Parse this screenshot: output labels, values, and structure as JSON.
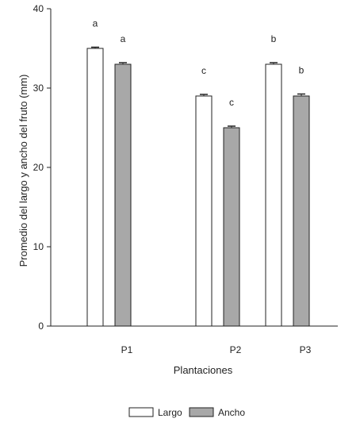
{
  "chart_data": {
    "type": "bar",
    "categories": [
      "P1",
      "P2",
      "P3"
    ],
    "series": [
      {
        "name": "Largo",
        "values": [
          35,
          29,
          33
        ],
        "errors": [
          0.15,
          0.2,
          0.2
        ],
        "labels": [
          "a",
          "c",
          "b"
        ],
        "color": "#ffffff"
      },
      {
        "name": "Ancho",
        "values": [
          33,
          25,
          29
        ],
        "errors": [
          0.2,
          0.2,
          0.25
        ],
        "labels": [
          "a",
          "c",
          "b"
        ],
        "color": "#a8a8a8"
      }
    ],
    "xlabel": "Plantaciones",
    "ylabel": "Promedio del largo y ancho del fruto (mm)",
    "ylim": [
      0,
      40
    ],
    "yticks": [
      "0",
      "10",
      "20",
      "30",
      "40"
    ],
    "grid": false,
    "legend": "bottom"
  }
}
